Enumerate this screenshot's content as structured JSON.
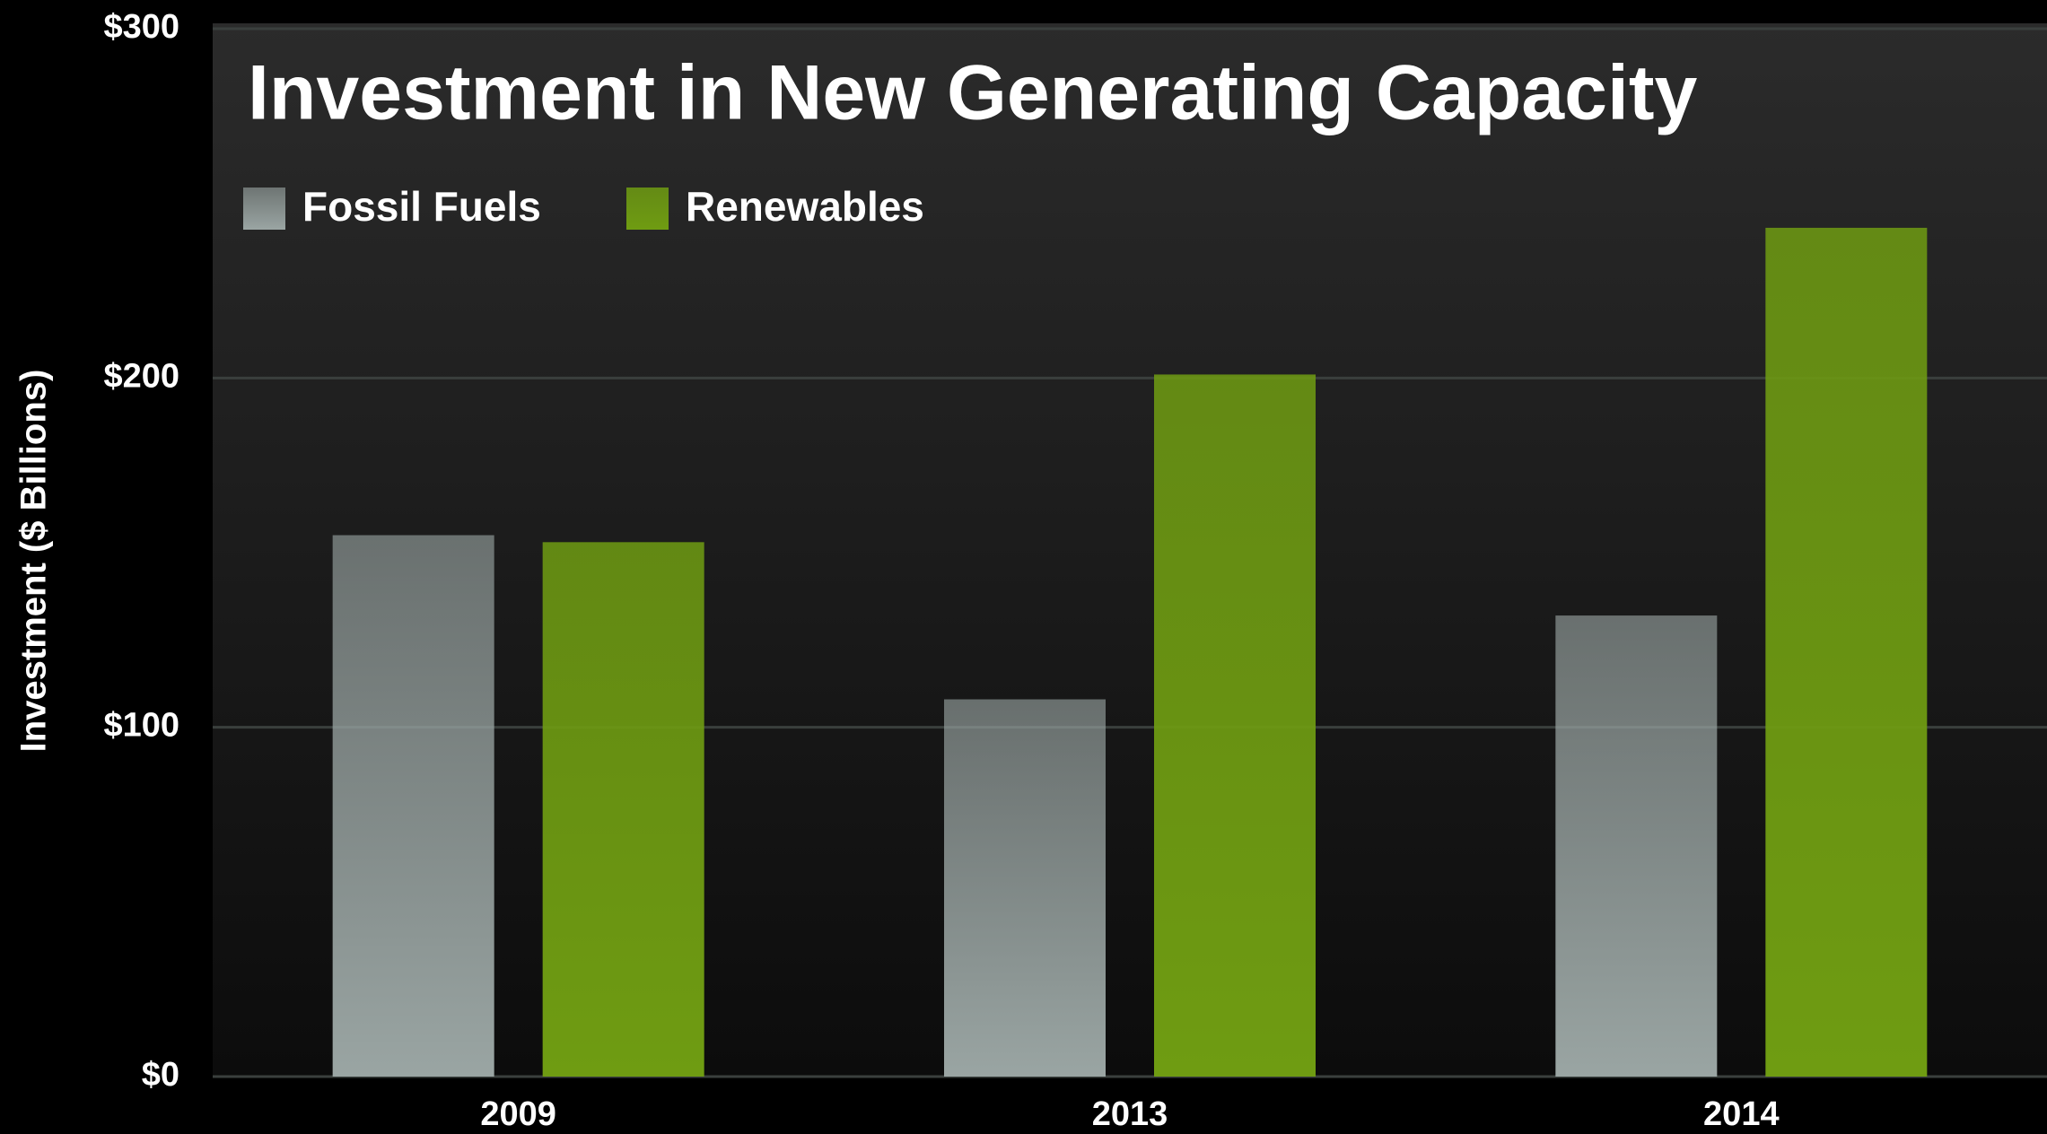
{
  "chart_data": {
    "type": "bar",
    "title": "Investment in New Generating Capacity",
    "y_label": "Investment ($ Billions)",
    "categories": [
      "2009",
      "2013",
      "2014"
    ],
    "series": [
      {
        "name": "Fossil Fuels",
        "color": "#9aa5a3",
        "values": [
          155,
          108,
          132
        ]
      },
      {
        "name": "Renewables",
        "color": "#6f9c12",
        "values": [
          153,
          201,
          243
        ]
      }
    ],
    "ylim": [
      0,
      300
    ],
    "yticks": [
      {
        "value": 0,
        "label": "$0"
      },
      {
        "value": 100,
        "label": "$100"
      },
      {
        "value": 200,
        "label": "$200"
      },
      {
        "value": 300,
        "label": "$300"
      }
    ],
    "grid": true,
    "legend": "top-left"
  }
}
